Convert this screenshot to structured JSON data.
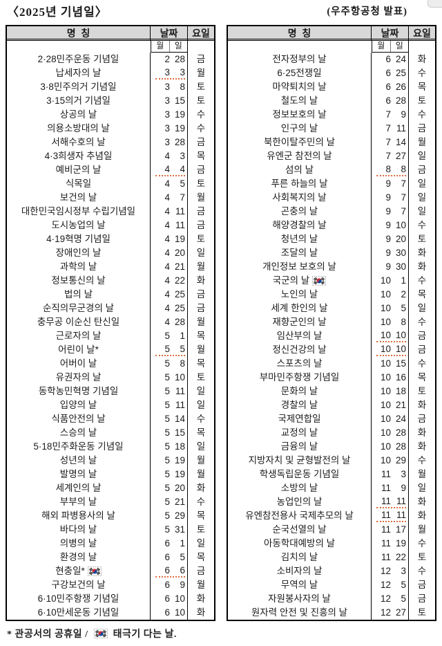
{
  "header": {
    "title": "〈2025년 기념일〉",
    "source": "(우주항공청 발표)"
  },
  "table_headers": {
    "name": "명  칭",
    "date": "날짜",
    "day": "요일",
    "month_label": "월",
    "day_label": "일"
  },
  "footnote": {
    "holiday_text": "* 관공서의 공휴일 /",
    "flag_icon": "taegeukgi-icon",
    "flag_text": "태극기 다는 날."
  },
  "colors": {
    "header_bg": "#d8d8d8",
    "border": "#000000",
    "squiggle_underline": "#dd6b3d",
    "flag_red": "#cd2e3a",
    "flag_blue": "#0047a0"
  },
  "left_rows": [
    {
      "name": "2·28민주운동 기념일",
      "month": "2",
      "day": "28",
      "weekday": "금",
      "underline": false,
      "flag": false
    },
    {
      "name": "납세자의 날",
      "month": "3",
      "day": "3",
      "weekday": "월",
      "underline": true,
      "flag": false
    },
    {
      "name": "3·8민주의거 기념일",
      "month": "3",
      "day": "8",
      "weekday": "토",
      "underline": false,
      "flag": false
    },
    {
      "name": "3·15의거 기념일",
      "month": "3",
      "day": "15",
      "weekday": "토",
      "underline": false,
      "flag": false
    },
    {
      "name": "상공의 날",
      "month": "3",
      "day": "19",
      "weekday": "수",
      "underline": false,
      "flag": false
    },
    {
      "name": "의용소방대의 날",
      "month": "3",
      "day": "19",
      "weekday": "수",
      "underline": false,
      "flag": false
    },
    {
      "name": "서해수호의 날",
      "month": "3",
      "day": "28",
      "weekday": "금",
      "underline": false,
      "flag": false
    },
    {
      "name": "4·3희생자 추념일",
      "month": "4",
      "day": "3",
      "weekday": "목",
      "underline": false,
      "flag": false
    },
    {
      "name": "예비군의 날",
      "month": "4",
      "day": "4",
      "weekday": "금",
      "underline": true,
      "flag": false
    },
    {
      "name": "식목일",
      "month": "4",
      "day": "5",
      "weekday": "토",
      "underline": false,
      "flag": false
    },
    {
      "name": "보건의 날",
      "month": "4",
      "day": "7",
      "weekday": "월",
      "underline": false,
      "flag": false
    },
    {
      "name": "대한민국임시정부 수립기념일",
      "month": "4",
      "day": "11",
      "weekday": "금",
      "underline": false,
      "flag": false
    },
    {
      "name": "도시농업의 날",
      "month": "4",
      "day": "11",
      "weekday": "금",
      "underline": false,
      "flag": false
    },
    {
      "name": "4·19혁명 기념일",
      "month": "4",
      "day": "19",
      "weekday": "토",
      "underline": false,
      "flag": false
    },
    {
      "name": "장애인의 날",
      "month": "4",
      "day": "20",
      "weekday": "일",
      "underline": false,
      "flag": false
    },
    {
      "name": "과학의 날",
      "month": "4",
      "day": "21",
      "weekday": "월",
      "underline": false,
      "flag": false
    },
    {
      "name": "정보통신의 날",
      "month": "4",
      "day": "22",
      "weekday": "화",
      "underline": false,
      "flag": false
    },
    {
      "name": "법의 날",
      "month": "4",
      "day": "25",
      "weekday": "금",
      "underline": false,
      "flag": false
    },
    {
      "name": "순직의무군경의 날",
      "month": "4",
      "day": "25",
      "weekday": "금",
      "underline": false,
      "flag": false
    },
    {
      "name": "충무공 이순신 탄신일",
      "month": "4",
      "day": "28",
      "weekday": "월",
      "underline": false,
      "flag": false
    },
    {
      "name": "근로자의 날",
      "month": "5",
      "day": "1",
      "weekday": "목",
      "underline": false,
      "flag": false
    },
    {
      "name": "어린이 날*",
      "month": "5",
      "day": "5",
      "weekday": "월",
      "underline": true,
      "flag": false
    },
    {
      "name": "어버이 날",
      "month": "5",
      "day": "8",
      "weekday": "목",
      "underline": false,
      "flag": false
    },
    {
      "name": "유권자의 날",
      "month": "5",
      "day": "10",
      "weekday": "토",
      "underline": false,
      "flag": false
    },
    {
      "name": "동학농민혁명 기념일",
      "month": "5",
      "day": "11",
      "weekday": "일",
      "underline": false,
      "flag": false
    },
    {
      "name": "입양의 날",
      "month": "5",
      "day": "11",
      "weekday": "일",
      "underline": false,
      "flag": false
    },
    {
      "name": "식품안전의 날",
      "month": "5",
      "day": "14",
      "weekday": "수",
      "underline": false,
      "flag": false
    },
    {
      "name": "스승의 날",
      "month": "5",
      "day": "15",
      "weekday": "목",
      "underline": false,
      "flag": false
    },
    {
      "name": "5·18민주화운동 기념일",
      "month": "5",
      "day": "18",
      "weekday": "일",
      "underline": false,
      "flag": false
    },
    {
      "name": "성년의 날",
      "month": "5",
      "day": "19",
      "weekday": "월",
      "underline": false,
      "flag": false
    },
    {
      "name": "발명의 날",
      "month": "5",
      "day": "19",
      "weekday": "월",
      "underline": false,
      "flag": false
    },
    {
      "name": "세계인의 날",
      "month": "5",
      "day": "20",
      "weekday": "화",
      "underline": false,
      "flag": false
    },
    {
      "name": "부부의 날",
      "month": "5",
      "day": "21",
      "weekday": "수",
      "underline": false,
      "flag": false
    },
    {
      "name": "해외 파병용사의 날",
      "month": "5",
      "day": "29",
      "weekday": "목",
      "underline": false,
      "flag": false
    },
    {
      "name": "바다의 날",
      "month": "5",
      "day": "31",
      "weekday": "토",
      "underline": false,
      "flag": false
    },
    {
      "name": "의병의 날",
      "month": "6",
      "day": "1",
      "weekday": "일",
      "underline": false,
      "flag": false
    },
    {
      "name": "환경의 날",
      "month": "6",
      "day": "5",
      "weekday": "목",
      "underline": false,
      "flag": false
    },
    {
      "name": "현충일*",
      "month": "6",
      "day": "6",
      "weekday": "금",
      "underline": true,
      "flag": true
    },
    {
      "name": "구강보건의 날",
      "month": "6",
      "day": "9",
      "weekday": "월",
      "underline": false,
      "flag": false
    },
    {
      "name": "6·10민주항쟁 기념일",
      "month": "6",
      "day": "10",
      "weekday": "화",
      "underline": false,
      "flag": false
    },
    {
      "name": "6·10만세운동 기념일",
      "month": "6",
      "day": "10",
      "weekday": "화",
      "underline": false,
      "flag": false
    }
  ],
  "right_rows": [
    {
      "name": "전자정부의 날",
      "month": "6",
      "day": "24",
      "weekday": "화",
      "underline": false,
      "flag": false
    },
    {
      "name": "6·25전쟁일",
      "month": "6",
      "day": "25",
      "weekday": "수",
      "underline": false,
      "flag": false
    },
    {
      "name": "마약퇴치의 날",
      "month": "6",
      "day": "26",
      "weekday": "목",
      "underline": false,
      "flag": false
    },
    {
      "name": "철도의 날",
      "month": "6",
      "day": "28",
      "weekday": "토",
      "underline": false,
      "flag": false
    },
    {
      "name": "정보보호의 날",
      "month": "7",
      "day": "9",
      "weekday": "수",
      "underline": false,
      "flag": false
    },
    {
      "name": "인구의 날",
      "month": "7",
      "day": "11",
      "weekday": "금",
      "underline": false,
      "flag": false
    },
    {
      "name": "북한이탈주민의 날",
      "month": "7",
      "day": "14",
      "weekday": "월",
      "underline": false,
      "flag": false
    },
    {
      "name": "유엔군 참전의 날",
      "month": "7",
      "day": "27",
      "weekday": "일",
      "underline": false,
      "flag": false
    },
    {
      "name": "섬의 날",
      "month": "8",
      "day": "8",
      "weekday": "금",
      "underline": true,
      "flag": false
    },
    {
      "name": "푸른 하늘의 날",
      "month": "9",
      "day": "7",
      "weekday": "일",
      "underline": false,
      "flag": false
    },
    {
      "name": "사회복지의 날",
      "month": "9",
      "day": "7",
      "weekday": "일",
      "underline": false,
      "flag": false
    },
    {
      "name": "곤충의 날",
      "month": "9",
      "day": "7",
      "weekday": "일",
      "underline": false,
      "flag": false
    },
    {
      "name": "해양경찰의 날",
      "month": "9",
      "day": "10",
      "weekday": "수",
      "underline": false,
      "flag": false
    },
    {
      "name": "청년의 날",
      "month": "9",
      "day": "20",
      "weekday": "토",
      "underline": false,
      "flag": false
    },
    {
      "name": "조달의 날",
      "month": "9",
      "day": "30",
      "weekday": "화",
      "underline": false,
      "flag": false
    },
    {
      "name": "개인정보 보호의 날",
      "month": "9",
      "day": "30",
      "weekday": "화",
      "underline": false,
      "flag": false
    },
    {
      "name": "국군의 날",
      "month": "10",
      "day": "1",
      "weekday": "수",
      "underline": false,
      "flag": true
    },
    {
      "name": "노인의 날",
      "month": "10",
      "day": "2",
      "weekday": "목",
      "underline": false,
      "flag": false
    },
    {
      "name": "세계 한인의 날",
      "month": "10",
      "day": "5",
      "weekday": "일",
      "underline": false,
      "flag": false
    },
    {
      "name": "재향군인의 날",
      "month": "10",
      "day": "8",
      "weekday": "수",
      "underline": false,
      "flag": false
    },
    {
      "name": "임산부의 날",
      "month": "10",
      "day": "10",
      "weekday": "금",
      "underline": true,
      "flag": false
    },
    {
      "name": "정신건강의 날",
      "month": "10",
      "day": "10",
      "weekday": "금",
      "underline": true,
      "flag": false
    },
    {
      "name": "스포츠의 날",
      "month": "10",
      "day": "15",
      "weekday": "수",
      "underline": false,
      "flag": false
    },
    {
      "name": "부마민주항쟁 기념일",
      "month": "10",
      "day": "16",
      "weekday": "목",
      "underline": false,
      "flag": false
    },
    {
      "name": "문화의 날",
      "month": "10",
      "day": "18",
      "weekday": "토",
      "underline": false,
      "flag": false
    },
    {
      "name": "경찰의 날",
      "month": "10",
      "day": "21",
      "weekday": "화",
      "underline": false,
      "flag": false
    },
    {
      "name": "국제연합일",
      "month": "10",
      "day": "24",
      "weekday": "금",
      "underline": false,
      "flag": false
    },
    {
      "name": "교정의 날",
      "month": "10",
      "day": "28",
      "weekday": "화",
      "underline": false,
      "flag": false
    },
    {
      "name": "금융의 날",
      "month": "10",
      "day": "28",
      "weekday": "화",
      "underline": false,
      "flag": false
    },
    {
      "name": "지방자치 및 균형발전의 날",
      "month": "10",
      "day": "29",
      "weekday": "수",
      "underline": false,
      "flag": false
    },
    {
      "name": "학생독립운동 기념일",
      "month": "11",
      "day": "3",
      "weekday": "월",
      "underline": false,
      "flag": false
    },
    {
      "name": "소방의 날",
      "month": "11",
      "day": "9",
      "weekday": "일",
      "underline": false,
      "flag": false
    },
    {
      "name": "농업인의 날",
      "month": "11",
      "day": "11",
      "weekday": "화",
      "underline": true,
      "flag": false
    },
    {
      "name": "유엔참전용사 국제추모의 날",
      "month": "11",
      "day": "11",
      "weekday": "화",
      "underline": true,
      "flag": false
    },
    {
      "name": "순국선열의 날",
      "month": "11",
      "day": "17",
      "weekday": "월",
      "underline": false,
      "flag": false
    },
    {
      "name": "아동학대예방의 날",
      "month": "11",
      "day": "19",
      "weekday": "수",
      "underline": false,
      "flag": false
    },
    {
      "name": "김치의 날",
      "month": "11",
      "day": "22",
      "weekday": "토",
      "underline": false,
      "flag": false
    },
    {
      "name": "소비자의 날",
      "month": "12",
      "day": "3",
      "weekday": "수",
      "underline": false,
      "flag": false
    },
    {
      "name": "무역의 날",
      "month": "12",
      "day": "5",
      "weekday": "금",
      "underline": false,
      "flag": false
    },
    {
      "name": "자원봉사자의 날",
      "month": "12",
      "day": "5",
      "weekday": "금",
      "underline": false,
      "flag": false
    },
    {
      "name": "원자력 안전 및 진흥의 날",
      "month": "12",
      "day": "27",
      "weekday": "토",
      "underline": false,
      "flag": false
    }
  ]
}
